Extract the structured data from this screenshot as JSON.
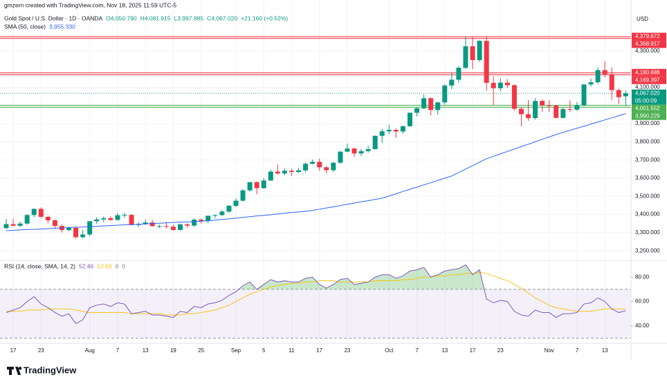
{
  "chart_data": {
    "type": "candlestick",
    "credit": "gmzern created with TradingView.com, Nov 18, 2025 11:59 UTC-5",
    "title": "Gold Spot / U.S. Dollar · 1D · OANDA",
    "ohlc_labels": [
      "O4,050.790",
      "H4,081.915",
      "L3,997.985",
      "C4,067.020",
      "+21.160 (+0.52%)"
    ],
    "currency": "USD",
    "brand": "TradingView",
    "up_color": "#089981",
    "down_color": "#f23645",
    "candles": [
      [
        3325,
        3377,
        3320,
        3347
      ],
      [
        3347,
        3377,
        3335,
        3338
      ],
      [
        3338,
        3361,
        3330,
        3350
      ],
      [
        3350,
        3402,
        3343,
        3397
      ],
      [
        3397,
        3433,
        3385,
        3431
      ],
      [
        3431,
        3439,
        3381,
        3387
      ],
      [
        3387,
        3394,
        3351,
        3368
      ],
      [
        3368,
        3373,
        3325,
        3337
      ],
      [
        3337,
        3345,
        3301,
        3314
      ],
      [
        3314,
        3334,
        3309,
        3326
      ],
      [
        3326,
        3334,
        3268,
        3275
      ],
      [
        3275,
        3315,
        3268,
        3290
      ],
      [
        3290,
        3363,
        3282,
        3363
      ],
      [
        3363,
        3385,
        3348,
        3373
      ],
      [
        3373,
        3390,
        3357,
        3380
      ],
      [
        3380,
        3390,
        3365,
        3370
      ],
      [
        3370,
        3409,
        3366,
        3396
      ],
      [
        3396,
        3410,
        3380,
        3398
      ],
      [
        3398,
        3404,
        3341,
        3342
      ],
      [
        3342,
        3358,
        3331,
        3347
      ],
      [
        3347,
        3374,
        3345,
        3356
      ],
      [
        3356,
        3370,
        3332,
        3336
      ],
      [
        3336,
        3345,
        3326,
        3336
      ],
      [
        3336,
        3358,
        3323,
        3333
      ],
      [
        3333,
        3345,
        3311,
        3315
      ],
      [
        3315,
        3350,
        3311,
        3346
      ],
      [
        3346,
        3351,
        3326,
        3339
      ],
      [
        3339,
        3378,
        3332,
        3372
      ],
      [
        3372,
        3377,
        3350,
        3365
      ],
      [
        3365,
        3394,
        3352,
        3393
      ],
      [
        3393,
        3400,
        3378,
        3397
      ],
      [
        3397,
        3423,
        3389,
        3416
      ],
      [
        3416,
        3453,
        3408,
        3448
      ],
      [
        3448,
        3489,
        3440,
        3476
      ],
      [
        3476,
        3540,
        3470,
        3533
      ],
      [
        3533,
        3578,
        3526,
        3578
      ],
      [
        3578,
        3583,
        3511,
        3545
      ],
      [
        3545,
        3600,
        3541,
        3587
      ],
      [
        3587,
        3646,
        3585,
        3636
      ],
      [
        3636,
        3675,
        3620,
        3626
      ],
      [
        3626,
        3655,
        3617,
        3641
      ],
      [
        3641,
        3652,
        3613,
        3634
      ],
      [
        3634,
        3656,
        3628,
        3643
      ],
      [
        3643,
        3686,
        3633,
        3679
      ],
      [
        3679,
        3703,
        3676,
        3690
      ],
      [
        3690,
        3707,
        3640,
        3660
      ],
      [
        3660,
        3668,
        3628,
        3644
      ],
      [
        3644,
        3688,
        3634,
        3685
      ],
      [
        3685,
        3749,
        3680,
        3746
      ],
      [
        3746,
        3791,
        3744,
        3763
      ],
      [
        3763,
        3768,
        3717,
        3736
      ],
      [
        3736,
        3761,
        3722,
        3749
      ],
      [
        3749,
        3779,
        3740,
        3760
      ],
      [
        3760,
        3835,
        3758,
        3833
      ],
      [
        3833,
        3872,
        3793,
        3858
      ],
      [
        3858,
        3895,
        3843,
        3866
      ],
      [
        3866,
        3875,
        3821,
        3857
      ],
      [
        3857,
        3889,
        3845,
        3886
      ],
      [
        3886,
        3961,
        3884,
        3960
      ],
      [
        3960,
        3990,
        3940,
        3985
      ],
      [
        3985,
        4060,
        3980,
        4040
      ],
      [
        4040,
        4045,
        3945,
        3975
      ],
      [
        3975,
        4021,
        3950,
        4017
      ],
      [
        4017,
        4117,
        4005,
        4110
      ],
      [
        4110,
        4180,
        4090,
        4142
      ],
      [
        4142,
        4218,
        4125,
        4208
      ],
      [
        4208,
        4380,
        4200,
        4326
      ],
      [
        4326,
        4381,
        4200,
        4250
      ],
      [
        4250,
        4359,
        4240,
        4356
      ],
      [
        4356,
        4381,
        4082,
        4125
      ],
      [
        4125,
        4160,
        4003,
        4095
      ],
      [
        4095,
        4150,
        4078,
        4126
      ],
      [
        4126,
        4145,
        4096,
        4112
      ],
      [
        4112,
        4115,
        3971,
        3982
      ],
      [
        3982,
        3992,
        3886,
        3952
      ],
      [
        3952,
        4030,
        3916,
        3931
      ],
      [
        3931,
        4040,
        3923,
        4025
      ],
      [
        4025,
        4033,
        3965,
        4001
      ],
      [
        4001,
        4030,
        3964,
        4000
      ],
      [
        4000,
        4002,
        3930,
        3932
      ],
      [
        3932,
        3990,
        3928,
        3980
      ],
      [
        3980,
        4028,
        3965,
        3977
      ],
      [
        3977,
        4020,
        3970,
        4001
      ],
      [
        4001,
        4118,
        3995,
        4116
      ],
      [
        4116,
        4148,
        4105,
        4128
      ],
      [
        4128,
        4210,
        4118,
        4195
      ],
      [
        4195,
        4245,
        4155,
        4172
      ],
      [
        4172,
        4211,
        4030,
        4085
      ],
      [
        4085,
        4095,
        4009,
        4046
      ],
      [
        4050.79,
        4081.915,
        3997.985,
        4067.02
      ]
    ],
    "sma": {
      "name": "SMA (50, close)",
      "value_label": "3,955.330",
      "color": "#2962ff",
      "values": [
        3311,
        3313,
        3315,
        3317,
        3318,
        3320,
        3322,
        3324,
        3326,
        3328,
        3330,
        3331,
        3333,
        3335,
        3337,
        3339,
        3341,
        3343,
        3344,
        3346,
        3348,
        3350,
        3352,
        3354,
        3356,
        3358,
        3359,
        3361,
        3363,
        3365,
        3369,
        3373,
        3376,
        3380,
        3384,
        3388,
        3392,
        3395,
        3399,
        3403,
        3407,
        3411,
        3414,
        3418,
        3422,
        3429,
        3436,
        3442,
        3449,
        3456,
        3463,
        3470,
        3476,
        3483,
        3490,
        3502,
        3514,
        3527,
        3539,
        3551,
        3563,
        3575,
        3588,
        3600,
        3612,
        3631,
        3650,
        3669,
        3688,
        3707,
        3720,
        3734,
        3747,
        3760,
        3774,
        3787,
        3800,
        3814,
        3827,
        3840,
        3852,
        3863,
        3875,
        3886,
        3898,
        3909,
        3921,
        3932,
        3944,
        3955.33
      ]
    },
    "ylim": [
      3155,
      4581
    ],
    "yticks": [
      {
        "value": 3200,
        "label": "3,200.000"
      },
      {
        "value": 3300,
        "label": "3,300.000"
      },
      {
        "value": 3400,
        "label": "3,400.000"
      },
      {
        "value": 3500,
        "label": "3,500.000"
      },
      {
        "value": 3600,
        "label": "3,600.000"
      },
      {
        "value": 3700,
        "label": "3,700.000"
      },
      {
        "value": 3800,
        "label": "3,800.000"
      },
      {
        "value": 3900,
        "label": "3,900.000"
      },
      {
        "value": 4100,
        "label": "4,100.000"
      },
      {
        "value": 4300,
        "label": "4,300.000"
      }
    ],
    "levels": [
      {
        "value": 4379.672,
        "label": "4,379.672",
        "color": "#f23645"
      },
      {
        "value": 4368.917,
        "label": "4,368.917",
        "color": "#f23645"
      },
      {
        "value": 4180.688,
        "label": "4,180.688",
        "color": "#f23645"
      },
      {
        "value": 4169.397,
        "label": "4,169.397",
        "color": "#f23645"
      },
      {
        "value": 4001.552,
        "label": "4,001.552",
        "color": "#4caf50"
      },
      {
        "value": 3990.229,
        "label": "3,990.229",
        "color": "#4caf50"
      }
    ],
    "last": {
      "value": 4067.02,
      "label": "4,067.020",
      "countdown": "05:00:09",
      "color": "#089981"
    },
    "xticks": [
      {
        "value": 1,
        "label": "17"
      },
      {
        "value": 5,
        "label": "23"
      },
      {
        "value": 12,
        "label": "Aug"
      },
      {
        "value": 16,
        "label": "7"
      },
      {
        "value": 20,
        "label": "13"
      },
      {
        "value": 24,
        "label": "19"
      },
      {
        "value": 28,
        "label": "25"
      },
      {
        "value": 33,
        "label": "Sep"
      },
      {
        "value": 37,
        "label": "5"
      },
      {
        "value": 41,
        "label": "11"
      },
      {
        "value": 45,
        "label": "17"
      },
      {
        "value": 49,
        "label": "23"
      },
      {
        "value": 55,
        "label": "Oct"
      },
      {
        "value": 59,
        "label": "7"
      },
      {
        "value": 63,
        "label": "13"
      },
      {
        "value": 67,
        "label": "17"
      },
      {
        "value": 71,
        "label": "23"
      },
      {
        "value": 78,
        "label": "Nov"
      },
      {
        "value": 82,
        "label": "7"
      },
      {
        "value": 86,
        "label": "13"
      }
    ],
    "grid": true,
    "rsi": {
      "name": "RSI (14, close, SMA, 14, 2)",
      "value_label": "52.46",
      "ma_label": "53.69",
      "extra_labels": [
        "0",
        "0"
      ],
      "color": "#7e57c2",
      "ma_color": "#f5c518",
      "values": [
        51,
        53,
        55,
        60,
        64,
        58,
        55,
        51,
        48,
        50,
        42,
        45,
        55,
        57,
        58,
        56,
        59,
        58,
        50,
        51,
        52,
        49,
        49,
        48,
        47,
        52,
        51,
        56,
        55,
        58,
        59,
        61,
        65,
        68,
        73,
        76,
        70,
        74,
        78,
        76,
        77,
        76,
        76,
        79,
        80,
        74,
        71,
        74,
        78,
        79,
        74,
        75,
        76,
        80,
        82,
        82,
        79,
        81,
        85,
        86,
        88,
        80,
        82,
        85,
        86,
        87,
        90,
        82,
        86,
        62,
        59,
        61,
        60,
        52,
        49,
        48,
        53,
        51,
        51,
        47,
        50,
        50,
        51,
        58,
        59,
        63,
        60,
        54,
        51,
        52.46
      ],
      "ma_values": [
        52,
        52,
        52,
        53,
        53,
        53,
        54,
        54,
        54,
        54,
        53,
        52,
        51,
        51,
        51,
        51,
        51,
        51,
        50,
        50,
        50,
        50,
        50,
        49,
        49,
        49,
        50,
        50,
        51,
        52,
        53,
        55,
        57,
        60,
        63,
        66,
        68,
        70,
        72,
        73,
        74,
        75,
        75,
        76,
        76,
        77,
        77,
        77,
        76,
        76,
        76,
        76,
        76,
        77,
        77,
        77,
        77,
        78,
        78,
        79,
        80,
        80,
        81,
        81,
        82,
        82,
        83,
        83,
        84,
        83,
        81,
        79,
        77,
        74,
        71,
        67,
        63,
        60,
        57,
        55,
        54,
        53,
        52,
        52,
        52,
        53,
        54,
        54,
        54,
        53.69
      ],
      "ylim": [
        27,
        92
      ],
      "yticks": [
        {
          "value": 80,
          "label": "80.00"
        },
        {
          "value": 60,
          "label": "60.00"
        },
        {
          "value": 40,
          "label": "40.00"
        }
      ],
      "bands": [
        70,
        30
      ]
    }
  }
}
